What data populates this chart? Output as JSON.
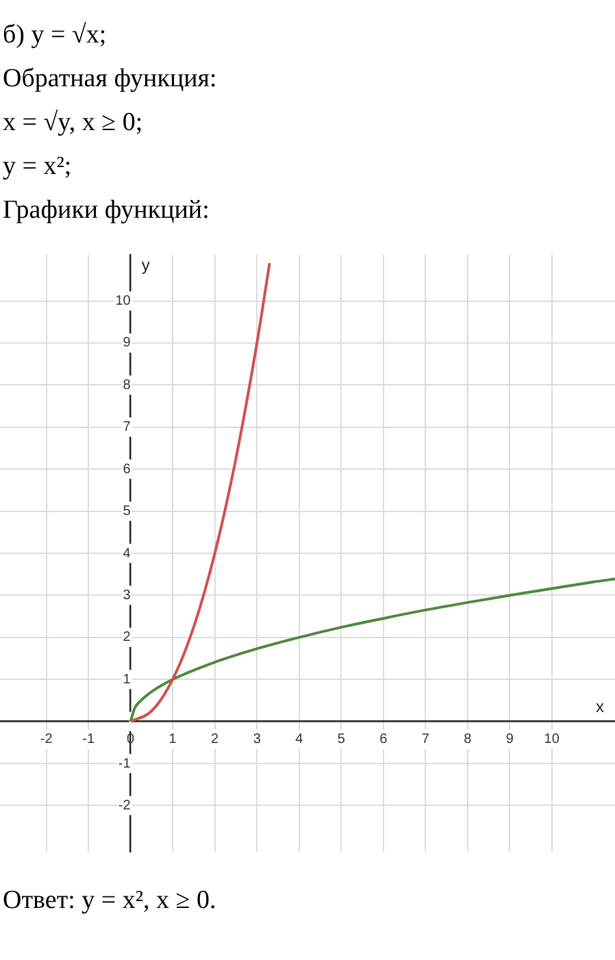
{
  "chart_data": {
    "type": "line",
    "title": "б) y = √x;",
    "annotations": [
      "Обратная функция:",
      "x = √y,  x ≥ 0;",
      "y = x²;",
      "Графики функций:",
      "Ответ:  y = x²,  x ≥ 0."
    ],
    "xlabel": "x",
    "ylabel": "y",
    "series": [
      {
        "color": "#d2504b",
        "x": [
          0,
          0.5,
          1,
          1.5,
          2,
          2.5,
          3,
          3.3
        ],
        "values": [
          0,
          0.25,
          1,
          2.25,
          4,
          6.25,
          9,
          10.9
        ]
      },
      {
        "color": "#4b8a3e",
        "x": [
          0,
          0.1,
          0.25,
          0.5,
          1,
          2,
          3,
          4,
          5,
          6,
          7,
          8,
          9,
          10,
          11,
          11.5
        ],
        "values": [
          0,
          0.32,
          0.5,
          0.71,
          1,
          1.41,
          1.73,
          2,
          2.24,
          2.45,
          2.65,
          2.83,
          3,
          3.16,
          3.32,
          3.39
        ]
      }
    ],
    "xlim": [
      -3.1,
      11.5
    ],
    "ylim": [
      -3.1,
      11.1
    ],
    "xticks": [
      -2,
      -1,
      0,
      1,
      2,
      3,
      4,
      5,
      6,
      7,
      8,
      9,
      10
    ],
    "yticks": [
      -2,
      -1,
      {
        "value": 0,
        "label": null
      },
      1,
      2,
      3,
      4,
      5,
      6,
      7,
      8,
      9,
      10
    ],
    "grid": true,
    "marker": "none",
    "line_style": "solid"
  }
}
